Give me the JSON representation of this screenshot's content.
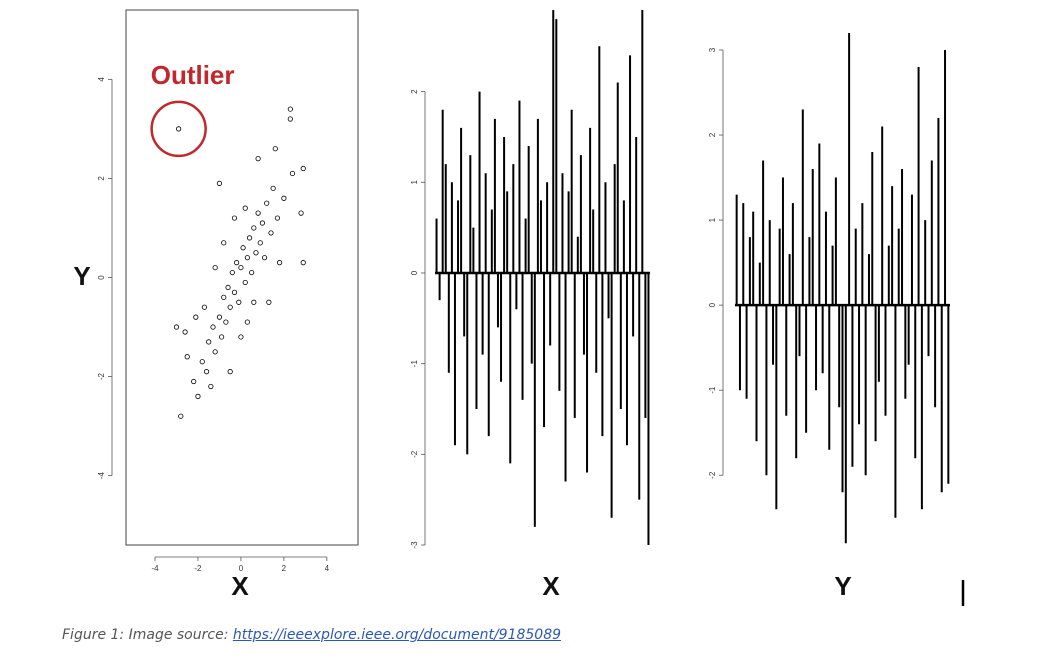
{
  "chart_data": [
    {
      "type": "scatter",
      "x_label": "X",
      "y_label": "Y",
      "annotation": "Outlier",
      "color": "#000000",
      "annotation_color": "#c0282c",
      "xlim": [
        -5.35,
        5.45
      ],
      "ylim": [
        -5.4,
        5.4
      ],
      "xticks": [
        -4,
        -2,
        0,
        2,
        4
      ],
      "yticks": [
        -4,
        -2,
        0,
        2,
        4
      ],
      "outlier": {
        "x": -2.9,
        "y": 3.0
      },
      "x": [
        -2.8,
        -2.0,
        -2.2,
        -1.8,
        -1.6,
        -1.5,
        -1.3,
        -1.2,
        -1.0,
        -0.9,
        -0.8,
        -0.7,
        -0.6,
        -0.5,
        -0.4,
        -0.3,
        -0.2,
        -0.1,
        0,
        0.1,
        0.2,
        0.3,
        0.4,
        0.5,
        0.6,
        0.7,
        0.8,
        0.9,
        1.0,
        1.1,
        1.2,
        1.4,
        1.5,
        1.7,
        2.0,
        2.3,
        2.3,
        2.8,
        2.9,
        2.9,
        -3.0,
        -2.5,
        -1.0,
        0.8,
        -0.5,
        0.3,
        1.3,
        -1.7,
        -1.2,
        0.0,
        1.8,
        2.4,
        -0.8,
        0.6,
        -2.1,
        1.6,
        -0.3,
        -1.4,
        0.2,
        -2.6
      ],
      "values": [
        -2.8,
        -2.4,
        -2.1,
        -1.7,
        -1.9,
        -1.3,
        -1.0,
        -1.5,
        -0.8,
        -1.2,
        -0.4,
        -0.9,
        -0.2,
        -0.6,
        0.1,
        -0.3,
        0.3,
        -0.5,
        0.2,
        0.6,
        -0.1,
        0.4,
        0.8,
        0.1,
        1.0,
        0.5,
        1.3,
        0.7,
        1.1,
        0.4,
        1.5,
        0.9,
        1.8,
        1.2,
        1.6,
        3.4,
        3.2,
        1.3,
        0.3,
        2.2,
        -1.0,
        -1.6,
        1.9,
        2.4,
        -1.9,
        -0.9,
        -0.5,
        -0.6,
        0.2,
        -1.2,
        0.3,
        2.1,
        0.7,
        -0.5,
        -0.8,
        2.6,
        1.2,
        -2.2,
        1.4,
        -1.1
      ]
    },
    {
      "type": "spike",
      "x_label": "X",
      "color": "#000000",
      "ylim": [
        -3,
        2.9
      ],
      "yticks": [
        -3,
        -2,
        -1,
        0,
        1,
        2
      ],
      "values": [
        0.6,
        -0.3,
        1.8,
        1.2,
        -1.1,
        1.0,
        -1.9,
        0.8,
        1.6,
        -0.7,
        -2.0,
        1.3,
        0.5,
        -1.5,
        2.0,
        -0.9,
        1.1,
        -1.8,
        0.7,
        1.7,
        -0.6,
        -1.2,
        1.5,
        0.9,
        -2.1,
        1.2,
        -0.4,
        1.9,
        -1.4,
        0.6,
        1.4,
        -1.0,
        -2.8,
        1.7,
        0.8,
        -1.7,
        1.0,
        -0.8,
        2.9,
        2.8,
        -1.3,
        1.1,
        -2.3,
        0.9,
        1.8,
        -1.6,
        0.4,
        1.3,
        -0.9,
        -2.2,
        1.6,
        0.7,
        -1.1,
        2.5,
        -1.8,
        1.0,
        -0.5,
        -2.7,
        1.2,
        2.1,
        -1.5,
        0.8,
        -1.9,
        2.4,
        -0.7,
        1.5,
        -2.5,
        2.9,
        -1.6,
        -3.0
      ]
    },
    {
      "type": "spike",
      "x_label": "Y",
      "color": "#000000",
      "ylim": [
        -2.82,
        3.47
      ],
      "yticks": [
        -2,
        -1,
        0,
        1,
        2,
        3
      ],
      "values": [
        1.3,
        -1.0,
        1.2,
        -1.1,
        0.8,
        1.1,
        -1.6,
        0.5,
        1.7,
        -2.0,
        1.0,
        -0.7,
        -2.4,
        0.9,
        1.5,
        -1.3,
        0.6,
        1.2,
        -1.8,
        -0.6,
        2.3,
        -1.5,
        0.8,
        1.6,
        -1.0,
        1.9,
        -0.8,
        1.1,
        -1.7,
        0.7,
        1.5,
        -1.2,
        -2.2,
        -2.8,
        3.2,
        -1.9,
        0.9,
        -1.4,
        1.2,
        -2.0,
        0.6,
        1.8,
        -1.6,
        -0.9,
        2.1,
        -1.3,
        0.7,
        1.4,
        -2.5,
        0.9,
        1.6,
        -1.1,
        -0.7,
        1.3,
        -1.8,
        2.8,
        -2.4,
        1.0,
        -0.6,
        1.7,
        -1.2,
        2.2,
        -2.2,
        3.0,
        -2.1
      ]
    }
  ],
  "caption": {
    "text": "Figure 1: Image source: ",
    "link": "https://ieeexplore.ieee.org/document/9185089"
  }
}
